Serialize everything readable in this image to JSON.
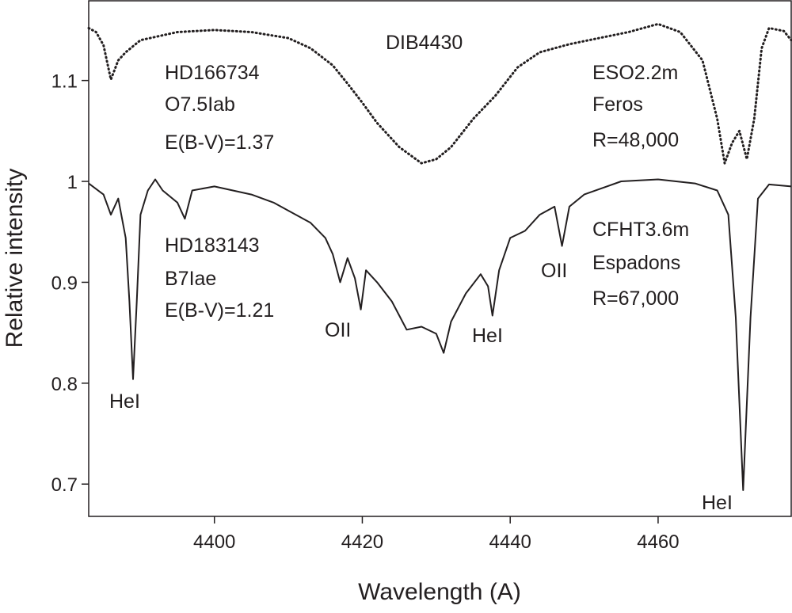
{
  "chart_data": {
    "type": "line",
    "xlabel": "Wavelength (A)",
    "ylabel": "Relative intensity",
    "xlim": [
      4383,
      4478
    ],
    "ylim": [
      0.668,
      1.179
    ],
    "xticks": [
      4400,
      4420,
      4440,
      4460
    ],
    "yticks": [
      0.7,
      0.8,
      0.9,
      1.0,
      1.1
    ],
    "series": [
      {
        "name": "HD166734",
        "color": "#231f20",
        "style": "dotted",
        "x": [
          4383,
          4384,
          4385,
          4386,
          4387,
          4388,
          4390,
          4395,
          4400,
          4405,
          4410,
          4413,
          4416,
          4418,
          4420,
          4422,
          4425,
          4428,
          4430,
          4432,
          4435,
          4438,
          4441,
          4444,
          4448,
          4452,
          4456,
          4460,
          4463,
          4466,
          4468,
          4469,
          4470,
          4471,
          4472,
          4473,
          4474,
          4475,
          4477,
          4478
        ],
        "values": [
          1.152,
          1.148,
          1.135,
          1.101,
          1.12,
          1.128,
          1.14,
          1.148,
          1.15,
          1.148,
          1.142,
          1.132,
          1.115,
          1.097,
          1.078,
          1.058,
          1.034,
          1.018,
          1.022,
          1.034,
          1.062,
          1.085,
          1.113,
          1.128,
          1.136,
          1.142,
          1.148,
          1.156,
          1.148,
          1.12,
          1.062,
          1.018,
          1.038,
          1.05,
          1.022,
          1.062,
          1.132,
          1.152,
          1.149,
          1.14
        ]
      },
      {
        "name": "HD183143",
        "color": "#231f20",
        "style": "solid",
        "x": [
          4383,
          4385,
          4386,
          4387,
          4388,
          4388.5,
          4389,
          4389.5,
          4390,
          4391,
          4392,
          4393,
          4395,
          4396,
          4397,
          4400,
          4405,
          4408,
          4410,
          4413,
          4415,
          4416,
          4417,
          4418,
          4419,
          4419.8,
          4420.5,
          4422,
          4424,
          4426,
          4428,
          4430,
          4431,
          4432,
          4434,
          4436,
          4437,
          4437.6,
          4438.5,
          4440,
          4442,
          4444,
          4446,
          4447,
          4448,
          4450,
          4455,
          4460,
          4465,
          4468,
          4469.5,
          4470.5,
          4471.5,
          4472.5,
          4473.5,
          4475,
          4478
        ],
        "values": [
          0.998,
          0.987,
          0.967,
          0.983,
          0.944,
          0.881,
          0.804,
          0.881,
          0.967,
          0.991,
          1.002,
          0.991,
          0.979,
          0.963,
          0.991,
          0.995,
          0.987,
          0.979,
          0.971,
          0.959,
          0.944,
          0.928,
          0.9,
          0.924,
          0.904,
          0.873,
          0.912,
          0.9,
          0.881,
          0.853,
          0.856,
          0.849,
          0.83,
          0.861,
          0.889,
          0.908,
          0.896,
          0.867,
          0.912,
          0.944,
          0.951,
          0.967,
          0.975,
          0.936,
          0.975,
          0.987,
          1.0,
          1.002,
          0.998,
          0.991,
          0.967,
          0.865,
          0.694,
          0.865,
          0.983,
          0.997,
          0.995
        ]
      }
    ],
    "annotations": [
      "DIB4430",
      "HD166734",
      "O7.5Iab",
      "E(B-V)=1.37",
      "ESO2.2m",
      "Feros",
      "R=48,000",
      "HD183143",
      "B7Iae",
      "E(B-V)=1.21",
      "CFHT3.6m",
      "Espadons",
      "R=67,000",
      "HeI",
      "OII",
      "HeI",
      "OII",
      "HeI"
    ]
  }
}
